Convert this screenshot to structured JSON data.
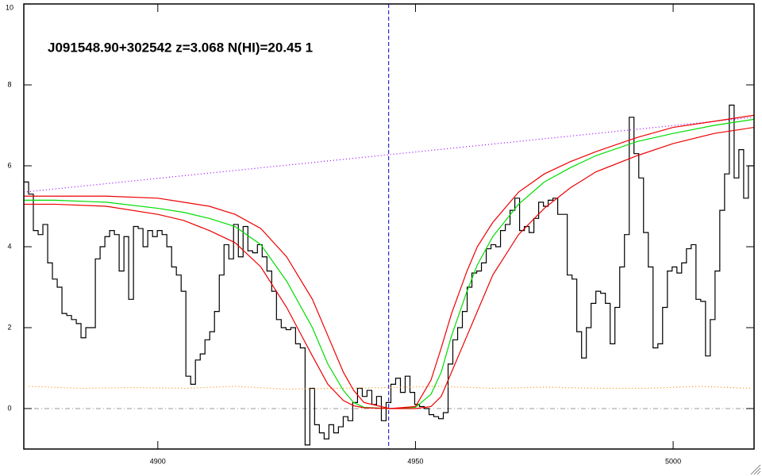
{
  "chart_data": {
    "type": "line",
    "annotation": "J091548.90+302542 z=3.068 N(HI)=20.45 1",
    "xlim": [
      4874,
      5015.7
    ],
    "ylim": [
      -1,
      10
    ],
    "xticks": [
      4900,
      4950,
      5000
    ],
    "yticks": [
      0,
      2,
      4,
      6,
      8,
      10
    ],
    "vline": {
      "x": 4944.8,
      "color": "#0000cc"
    },
    "hline": {
      "y": 0,
      "color": "#999999"
    },
    "series": [
      {
        "style": "steps",
        "color": "#000000",
        "x": [
          4874.0,
          4874.93,
          4875.85,
          4876.78,
          4877.7,
          4878.63,
          4879.55,
          4880.48,
          4881.4,
          4882.33,
          4883.25,
          4884.18,
          4885.1,
          4886.03,
          4886.95,
          4887.88,
          4888.8,
          4889.73,
          4890.65,
          4891.58,
          4892.5,
          4893.43,
          4894.35,
          4895.28,
          4896.2,
          4897.13,
          4898.05,
          4898.98,
          4899.9,
          4900.83,
          4901.75,
          4902.68,
          4903.6,
          4904.53,
          4905.45,
          4906.38,
          4907.3,
          4908.23,
          4909.15,
          4910.08,
          4911.0,
          4911.93,
          4912.85,
          4913.78,
          4914.7,
          4915.63,
          4916.55,
          4917.48,
          4918.4,
          4919.33,
          4920.25,
          4921.18,
          4922.1,
          4923.03,
          4923.95,
          4924.88,
          4925.8,
          4926.73,
          4927.65,
          4928.58,
          4929.5,
          4930.43,
          4931.35,
          4932.28,
          4933.2,
          4934.13,
          4935.05,
          4935.98,
          4936.9,
          4937.83,
          4938.75,
          4939.68,
          4940.6,
          4941.53,
          4942.45,
          4943.38,
          4944.3,
          4945.23,
          4946.15,
          4947.08,
          4948.0,
          4948.93,
          4949.85,
          4950.78,
          4951.7,
          4952.63,
          4953.55,
          4954.48,
          4955.4,
          4956.33,
          4957.25,
          4958.18,
          4959.1,
          4960.03,
          4960.95,
          4961.88,
          4962.8,
          4963.73,
          4964.65,
          4965.58,
          4966.5,
          4967.43,
          4968.35,
          4969.28,
          4970.2,
          4971.13,
          4972.05,
          4972.98,
          4973.9,
          4974.83,
          4975.75,
          4976.68,
          4977.6,
          4978.53,
          4979.45,
          4980.38,
          4981.3,
          4982.23,
          4983.15,
          4984.08,
          4985.0,
          4985.93,
          4986.85,
          4987.78,
          4988.7,
          4989.63,
          4990.55,
          4991.48,
          4992.4,
          4993.33,
          4994.25,
          4995.18,
          4996.1,
          4997.03,
          4997.95,
          4998.88,
          4999.8,
          5000.73,
          5001.65,
          5002.58,
          5003.5,
          5004.43,
          5005.35,
          5006.28,
          5007.2,
          5008.13,
          5009.05,
          5009.98,
          5010.9,
          5011.83,
          5012.75,
          5013.68,
          5014.6,
          5015.53
        ],
        "values": [
          5.6,
          5.3,
          4.4,
          4.3,
          4.55,
          3.6,
          3.2,
          3.0,
          2.35,
          2.3,
          2.2,
          2.1,
          1.75,
          2.0,
          2.0,
          3.7,
          4.0,
          4.25,
          4.4,
          4.3,
          3.4,
          4.25,
          2.7,
          4.5,
          4.45,
          4.0,
          4.4,
          4.25,
          4.4,
          4.3,
          4.0,
          3.5,
          3.3,
          2.9,
          0.8,
          0.6,
          1.2,
          1.35,
          1.7,
          1.9,
          2.4,
          3.3,
          4.05,
          3.7,
          4.55,
          3.75,
          4.5,
          3.9,
          3.85,
          4.05,
          3.75,
          3.4,
          2.9,
          2.2,
          2.0,
          1.95,
          2.0,
          1.6,
          1.5,
          -0.9,
          0.5,
          -0.4,
          -0.6,
          -0.75,
          -0.4,
          -0.6,
          -0.45,
          -0.2,
          -0.3,
          0.15,
          0.5,
          0.3,
          0.45,
          0.1,
          0.3,
          -0.3,
          0.15,
          0.6,
          0.75,
          0.4,
          0.8,
          0.4,
          0.1,
          0.05,
          0.0,
          -0.15,
          -0.2,
          -0.25,
          -0.1,
          1.1,
          1.7,
          2.0,
          2.4,
          3.0,
          3.35,
          3.4,
          3.6,
          3.95,
          4.05,
          4.0,
          4.4,
          4.55,
          4.9,
          5.2,
          4.4,
          4.5,
          4.35,
          4.7,
          5.1,
          5.0,
          5.15,
          5.2,
          4.8,
          4.8,
          3.3,
          3.2,
          1.9,
          1.25,
          2.0,
          2.6,
          2.9,
          2.85,
          2.6,
          1.6,
          2.5,
          3.5,
          4.3,
          7.2,
          6.3,
          5.7,
          4.35,
          3.5,
          1.5,
          1.6,
          2.5,
          3.4,
          3.5,
          3.35,
          3.6,
          3.95,
          4.05,
          2.7,
          2.65,
          1.3,
          2.2,
          3.4,
          4.9,
          5.8,
          7.5,
          5.7,
          6.4,
          5.2,
          6.0,
          6.0
        ]
      },
      {
        "style": "dotted",
        "color": "#9900ff",
        "x": [
          4874,
          5015.7
        ],
        "values": [
          5.35,
          7.2
        ]
      },
      {
        "style": "dotted",
        "color": "#ff8800",
        "x": [
          4875,
          4885,
          4895,
          4905,
          4915,
          4925,
          4935,
          4945,
          4955,
          4965,
          4975,
          4985,
          4995,
          5005,
          5015
        ],
        "values": [
          0.55,
          0.5,
          0.52,
          0.5,
          0.55,
          0.48,
          0.5,
          0.52,
          0.55,
          0.5,
          0.53,
          0.5,
          0.5,
          0.55,
          0.5
        ]
      },
      {
        "style": "solid",
        "color": "#00dd00",
        "x": [
          4874,
          4880,
          4890,
          4900,
          4905,
          4910,
          4915,
          4920,
          4925,
          4930,
          4933,
          4936,
          4938,
          4940,
          4945,
          4950,
          4953,
          4955,
          4957,
          4960,
          4962,
          4965,
          4970,
          4975,
          4980,
          4985,
          4993,
          5000,
          5008,
          5015.7
        ],
        "values": [
          5.15,
          5.15,
          5.1,
          4.95,
          4.85,
          4.7,
          4.5,
          4.05,
          3.15,
          2.0,
          1.1,
          0.45,
          0.15,
          0.03,
          0.0,
          0.03,
          0.35,
          0.9,
          1.8,
          2.9,
          3.55,
          4.25,
          5.05,
          5.6,
          5.95,
          6.25,
          6.6,
          6.8,
          7.0,
          7.15
        ]
      },
      {
        "style": "solid",
        "color": "#ee0000",
        "x": [
          4874,
          4880,
          4890,
          4900,
          4905,
          4910,
          4915,
          4920,
          4925,
          4930,
          4933,
          4936,
          4938,
          4940,
          4945,
          4950,
          4953,
          4955,
          4957,
          4960,
          4962,
          4965,
          4970,
          4975,
          4980,
          4985,
          4993,
          5000,
          5008,
          5015.7
        ],
        "values": [
          5.25,
          5.25,
          5.25,
          5.2,
          5.1,
          5.0,
          4.8,
          4.45,
          3.75,
          2.7,
          1.8,
          0.9,
          0.45,
          0.15,
          0.0,
          0.05,
          0.7,
          1.5,
          2.35,
          3.4,
          4.0,
          4.6,
          5.35,
          5.8,
          6.1,
          6.35,
          6.7,
          6.95,
          7.1,
          7.25
        ]
      },
      {
        "style": "solid",
        "color": "#ee0000",
        "x": [
          4874,
          4880,
          4890,
          4900,
          4905,
          4910,
          4915,
          4920,
          4925,
          4930,
          4933,
          4936,
          4938,
          4940,
          4945,
          4950,
          4953,
          4955,
          4957,
          4960,
          4962,
          4965,
          4970,
          4975,
          4980,
          4985,
          4993,
          5000,
          5008,
          5015.7
        ],
        "values": [
          5.05,
          5.05,
          5.0,
          4.8,
          4.65,
          4.4,
          4.1,
          3.5,
          2.5,
          1.3,
          0.6,
          0.2,
          0.07,
          0.02,
          0.0,
          0.0,
          0.05,
          0.3,
          0.9,
          1.8,
          2.4,
          3.3,
          4.3,
          4.95,
          5.45,
          5.85,
          6.25,
          6.55,
          6.8,
          6.95
        ]
      }
    ]
  }
}
